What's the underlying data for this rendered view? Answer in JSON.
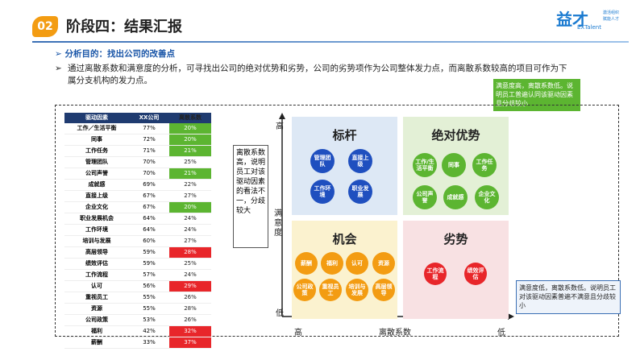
{
  "header": {
    "badge": "02",
    "title": "阶段四：结果汇报"
  },
  "logo": {
    "name": "益才",
    "brand": "EXTalent",
    "slogan1": "激活组织",
    "slogan2": "赋能人才"
  },
  "bullets": [
    "分析目的：找出公司的改善点",
    "通过离散系数和满意度的分析，可寻找出公司的绝对优势和劣势，公司的劣势项作为公司整体发力点，而离散系数较高的项目可作为下属分支机构的发力点。"
  ],
  "table": {
    "columns": [
      "驱动因素",
      "XX公司",
      "离散系数"
    ],
    "rows": [
      [
        "工作／生活平衡",
        "77%",
        "20%"
      ],
      [
        "同事",
        "72%",
        "20%"
      ],
      [
        "工作任务",
        "71%",
        "21%"
      ],
      [
        "管理团队",
        "70%",
        "25%"
      ],
      [
        "公司声誉",
        "70%",
        "21%"
      ],
      [
        "成就感",
        "69%",
        "22%"
      ],
      [
        "直接上级",
        "67%",
        "27%"
      ],
      [
        "企业文化",
        "67%",
        "20%"
      ],
      [
        "职业发展机会",
        "64%",
        "24%"
      ],
      [
        "工作环境",
        "64%",
        "24%"
      ],
      [
        "培训与发展",
        "60%",
        "27%"
      ],
      [
        "高层领导",
        "59%",
        "28%"
      ],
      [
        "绩效评估",
        "59%",
        "25%"
      ],
      [
        "工作流程",
        "57%",
        "24%"
      ],
      [
        "认可",
        "56%",
        "29%"
      ],
      [
        "重视员工",
        "55%",
        "26%"
      ],
      [
        "资源",
        "55%",
        "28%"
      ],
      [
        "公司政策",
        "53%",
        "26%"
      ],
      [
        "福利",
        "42%",
        "32%"
      ],
      [
        "薪酬",
        "33%",
        "37%"
      ]
    ],
    "dispersion_fill": [
      "#5cb531",
      "#5cb531",
      "#5cb531",
      null,
      "#5cb531",
      null,
      null,
      "#5cb531",
      null,
      null,
      null,
      "#e8262a",
      null,
      null,
      "#e8262a",
      null,
      null,
      null,
      "#e8262a",
      "#e8262a"
    ]
  },
  "callouts": {
    "middle": "离散系数高，说明员工对该驱动因素的看法不一，分歧较大",
    "top_right": "满意度高，离散系数低。说明员工普遍认同该驱动因素且分歧较小",
    "bottom_right": "满意度低，离散系数低。说明员工对该驱动因素普遍不满意且分歧较小"
  },
  "axes": {
    "y_high": "高",
    "y_label": "满意度",
    "y_low": "低",
    "x_high": "高",
    "x_label": "离散系数",
    "x_low": "低"
  },
  "quadrants": [
    {
      "title": "标杆",
      "items": [
        "管理团队",
        "直接上级",
        "工作环境",
        "职业发展"
      ]
    },
    {
      "title": "绝对优势",
      "items": [
        "工作/生活平衡",
        "同事",
        "工作任务",
        "公司声誉",
        "成就感",
        "企业文化"
      ]
    },
    {
      "title": "机会",
      "items": [
        "薪酬",
        "福利",
        "认可",
        "资源",
        "公司政策",
        "重视员工",
        "培训与发展",
        "高层领导"
      ]
    },
    {
      "title": "劣势",
      "items": [
        "工作流程",
        "绩效评估"
      ]
    }
  ]
}
